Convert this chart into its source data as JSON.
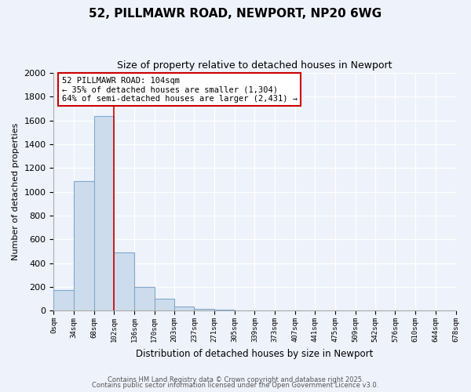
{
  "title": "52, PILLMAWR ROAD, NEWPORT, NP20 6WG",
  "subtitle": "Size of property relative to detached houses in Newport",
  "xlabel": "Distribution of detached houses by size in Newport",
  "ylabel": "Number of detached properties",
  "bar_color": "#cddcec",
  "bar_edge_color": "#7fa8cc",
  "vline_color": "#cc0000",
  "vline_x": 102,
  "bin_edges": [
    0,
    34,
    68,
    102,
    136,
    170,
    203,
    237,
    271,
    305,
    339,
    373,
    407,
    441,
    475,
    509,
    542,
    576,
    610,
    644,
    678
  ],
  "bar_heights": [
    175,
    1090,
    1640,
    490,
    200,
    100,
    38,
    12,
    8,
    0,
    0,
    0,
    0,
    0,
    0,
    0,
    0,
    0,
    0,
    0
  ],
  "tick_labels": [
    "0sqm",
    "34sqm",
    "68sqm",
    "102sqm",
    "136sqm",
    "170sqm",
    "203sqm",
    "237sqm",
    "271sqm",
    "305sqm",
    "339sqm",
    "373sqm",
    "407sqm",
    "441sqm",
    "475sqm",
    "509sqm",
    "542sqm",
    "576sqm",
    "610sqm",
    "644sqm",
    "678sqm"
  ],
  "ylim": [
    0,
    2000
  ],
  "yticks": [
    0,
    200,
    400,
    600,
    800,
    1000,
    1200,
    1400,
    1600,
    1800,
    2000
  ],
  "annotation_line1": "52 PILLMAWR ROAD: 104sqm",
  "annotation_line2": "← 35% of detached houses are smaller (1,304)",
  "annotation_line3": "64% of semi-detached houses are larger (2,431) →",
  "annotation_box_color": "#ffffff",
  "annotation_box_edge": "#cc0000",
  "footer_line1": "Contains HM Land Registry data © Crown copyright and database right 2025.",
  "footer_line2": "Contains public sector information licensed under the Open Government Licence v3.0.",
  "bg_color": "#eef2fb",
  "plot_bg_color": "#eef2fb",
  "grid_color": "#ffffff"
}
